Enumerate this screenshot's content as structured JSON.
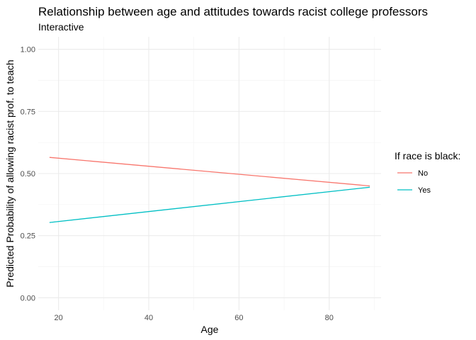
{
  "chart_data": {
    "type": "line",
    "title": "Relationship between age and attitudes towards racist college professors",
    "subtitle": "Interactive",
    "xlabel": "Age",
    "ylabel": "Predicted Probability of allowing racist prof. to teach",
    "xlim": [
      15.5,
      91.5
    ],
    "ylim": [
      -0.05,
      1.05
    ],
    "x_ticks": [
      20,
      40,
      60,
      80
    ],
    "x_tick_labels": [
      "20",
      "40",
      "60",
      "80"
    ],
    "x_minor_ticks": [
      30,
      50,
      70,
      90
    ],
    "y_ticks": [
      0,
      0.25,
      0.5,
      0.75,
      1.0
    ],
    "y_tick_labels": [
      "0.00",
      "0.25",
      "0.50",
      "0.75",
      "1.00"
    ],
    "grid": true,
    "legend": {
      "title": "If race is black:",
      "position": "right"
    },
    "series": [
      {
        "name": "No",
        "color": "#F8766D",
        "x": [
          18,
          89
        ],
        "y": [
          0.565,
          0.45
        ]
      },
      {
        "name": "Yes",
        "color": "#00BFC4",
        "x": [
          18,
          89
        ],
        "y": [
          0.303,
          0.445
        ]
      }
    ]
  }
}
